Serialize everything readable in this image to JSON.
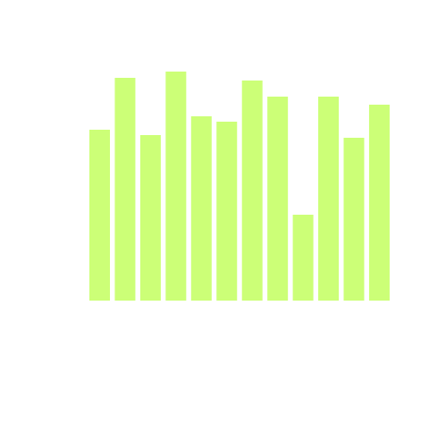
{
  "chart_data": {
    "type": "bar",
    "title": "",
    "xlabel": "",
    "ylabel": "",
    "bar_color": "#ccff77",
    "values": [
      191,
      249,
      185,
      256,
      206,
      200,
      246,
      228,
      96,
      228,
      182,
      219
    ],
    "ylim": [
      0,
      280
    ],
    "grid": false,
    "legend": "none"
  }
}
